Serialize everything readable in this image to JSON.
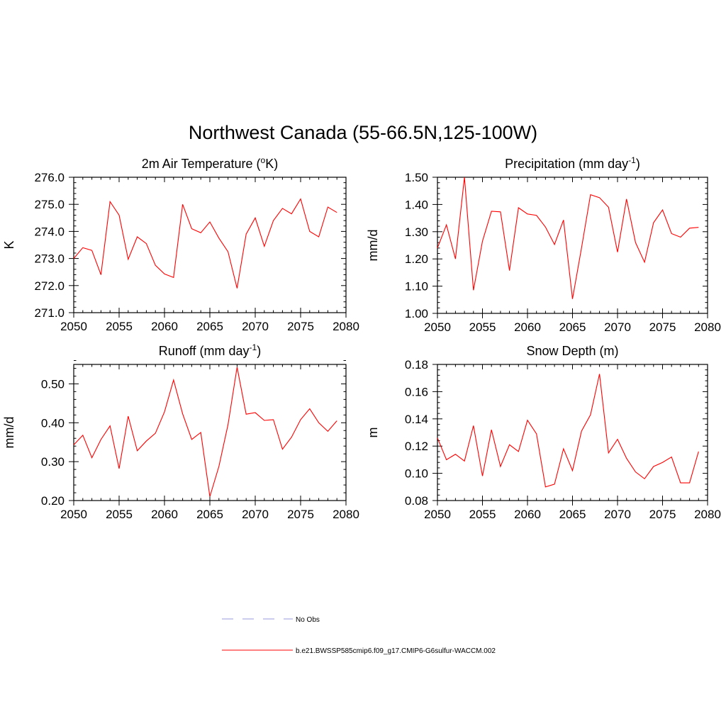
{
  "title": "Northwest Canada (55-66.5N,125-100W)",
  "legend": {
    "placement": "bottom-center",
    "entries": [
      {
        "label": "No Obs",
        "color": "#9999dd",
        "dash": true
      },
      {
        "label": "b.e21.BWSSP585cmip6.f09_g17.CMIP6-G6sulfur-WACCM.002",
        "color": "#ff0000",
        "dash": false
      }
    ]
  },
  "chart_data": [
    {
      "type": "line",
      "title": "2m Air Temperature (oK)",
      "title_main": "2m Air Temperature (",
      "title_sup": "o",
      "title_tail": "K)",
      "xlabel": "",
      "ylabel": "K",
      "xlim": [
        2050,
        2080
      ],
      "ylim": [
        271.0,
        276.0
      ],
      "xticks": [
        2050,
        2055,
        2060,
        2065,
        2070,
        2075,
        2080
      ],
      "xtick_labels": [
        "2050",
        "2055",
        "2060",
        "2065",
        "2070",
        "2075",
        "2080"
      ],
      "yticks": [
        271.0,
        272.0,
        273.0,
        274.0,
        275.0,
        276.0
      ],
      "ytick_labels": [
        "271.0",
        "272.0",
        "273.0",
        "274.0",
        "275.0",
        "276.0"
      ],
      "line_color": "#ff0000",
      "x": [
        2050,
        2051,
        2052,
        2053,
        2054,
        2055,
        2056,
        2057,
        2058,
        2059,
        2060,
        2061,
        2062,
        2063,
        2064,
        2065,
        2066,
        2067,
        2068,
        2069,
        2070,
        2071,
        2072,
        2073,
        2074,
        2075,
        2076,
        2077,
        2078,
        2079
      ],
      "values": [
        273.0,
        273.4,
        273.3,
        272.4,
        275.1,
        274.6,
        272.97,
        273.8,
        273.55,
        272.75,
        272.43,
        272.3,
        275.0,
        274.1,
        273.95,
        274.35,
        273.75,
        273.25,
        271.9,
        273.9,
        274.5,
        273.45,
        274.4,
        274.85,
        274.65,
        275.2,
        274.0,
        273.8,
        274.9,
        274.7
      ]
    },
    {
      "type": "line",
      "title": "Precipitation (mm day-1)",
      "title_main": "Precipitation (mm day",
      "title_sup": "-1",
      "title_tail": ")",
      "xlabel": "",
      "ylabel": "mm/d",
      "xlim": [
        2050,
        2080
      ],
      "ylim": [
        1.0,
        1.5
      ],
      "xticks": [
        2050,
        2055,
        2060,
        2065,
        2070,
        2075,
        2080
      ],
      "xtick_labels": [
        "2050",
        "2055",
        "2060",
        "2065",
        "2070",
        "2075",
        "2080"
      ],
      "yticks": [
        1.0,
        1.1,
        1.2,
        1.3,
        1.4,
        1.5
      ],
      "ytick_labels": [
        "1.00",
        "1.10",
        "1.20",
        "1.30",
        "1.40",
        "1.50"
      ],
      "line_color": "#ff0000",
      "x": [
        2050,
        2051,
        2052,
        2053,
        2054,
        2055,
        2056,
        2057,
        2058,
        2059,
        2060,
        2061,
        2062,
        2063,
        2064,
        2065,
        2066,
        2067,
        2068,
        2069,
        2070,
        2071,
        2072,
        2073,
        2074,
        2075,
        2076,
        2077,
        2078,
        2079
      ],
      "values": [
        1.24,
        1.325,
        1.2,
        1.5,
        1.085,
        1.265,
        1.375,
        1.373,
        1.157,
        1.388,
        1.365,
        1.36,
        1.317,
        1.253,
        1.343,
        1.053,
        1.24,
        1.436,
        1.425,
        1.39,
        1.225,
        1.42,
        1.26,
        1.188,
        1.333,
        1.38,
        1.293,
        1.28,
        1.313,
        1.316
      ]
    },
    {
      "type": "line",
      "title": "Runoff (mm day-1)",
      "title_main": "Runoff (mm day",
      "title_sup": "-1",
      "title_tail": ")",
      "xlabel": "",
      "ylabel": "mm/d",
      "xlim": [
        2050,
        2080
      ],
      "ylim": [
        0.2,
        0.55
      ],
      "xticks": [
        2050,
        2055,
        2060,
        2065,
        2070,
        2075,
        2080
      ],
      "xtick_labels": [
        "2050",
        "2055",
        "2060",
        "2065",
        "2070",
        "2075",
        "2080"
      ],
      "yticks": [
        0.2,
        0.3,
        0.4,
        0.5
      ],
      "ytick_labels": [
        "0.20",
        "0.30",
        "0.40",
        "0.50"
      ],
      "line_color": "#ff0000",
      "x": [
        2050,
        2051,
        2052,
        2053,
        2054,
        2055,
        2056,
        2057,
        2058,
        2059,
        2060,
        2061,
        2062,
        2063,
        2064,
        2065,
        2066,
        2067,
        2068,
        2069,
        2070,
        2071,
        2072,
        2073,
        2074,
        2075,
        2076,
        2077,
        2078,
        2079
      ],
      "values": [
        0.343,
        0.368,
        0.31,
        0.357,
        0.392,
        0.282,
        0.417,
        0.328,
        0.353,
        0.373,
        0.428,
        0.51,
        0.423,
        0.357,
        0.375,
        0.21,
        0.288,
        0.395,
        0.543,
        0.422,
        0.426,
        0.406,
        0.408,
        0.332,
        0.363,
        0.408,
        0.436,
        0.4,
        0.378,
        0.405
      ]
    },
    {
      "type": "line",
      "title": "Snow Depth (m)",
      "title_main": "Snow Depth (m)",
      "title_sup": "",
      "title_tail": "",
      "xlabel": "",
      "ylabel": "m",
      "xlim": [
        2050,
        2080
      ],
      "ylim": [
        0.08,
        0.18
      ],
      "xticks": [
        2050,
        2055,
        2060,
        2065,
        2070,
        2075,
        2080
      ],
      "xtick_labels": [
        "2050",
        "2055",
        "2060",
        "2065",
        "2070",
        "2075",
        "2080"
      ],
      "yticks": [
        0.08,
        0.1,
        0.12,
        0.14,
        0.16,
        0.18
      ],
      "ytick_labels": [
        "0.08",
        "0.10",
        "0.12",
        "0.14",
        "0.16",
        "0.18"
      ],
      "line_color": "#ff0000",
      "x": [
        2050,
        2051,
        2052,
        2053,
        2054,
        2055,
        2056,
        2057,
        2058,
        2059,
        2060,
        2061,
        2062,
        2063,
        2064,
        2065,
        2066,
        2067,
        2068,
        2069,
        2070,
        2071,
        2072,
        2073,
        2074,
        2075,
        2076,
        2077,
        2078,
        2079
      ],
      "values": [
        0.126,
        0.11,
        0.114,
        0.109,
        0.135,
        0.098,
        0.132,
        0.105,
        0.121,
        0.116,
        0.139,
        0.129,
        0.09,
        0.092,
        0.118,
        0.102,
        0.131,
        0.143,
        0.173,
        0.115,
        0.125,
        0.111,
        0.101,
        0.096,
        0.105,
        0.108,
        0.112,
        0.093,
        0.093,
        0.116
      ]
    }
  ]
}
